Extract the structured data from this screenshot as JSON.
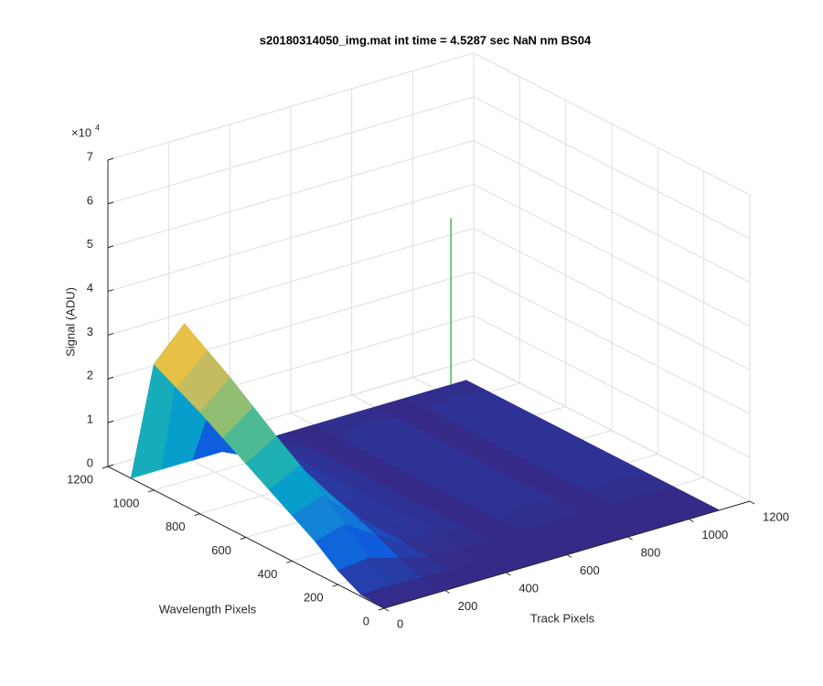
{
  "chart_data": {
    "type": "surface",
    "title": "s20180314050_img.mat int time = 4.5287 sec  NaN nm BS04",
    "xlabel": "Track Pixels",
    "ylabel": "Wavelength Pixels",
    "zlabel": "Signal (ADU)",
    "z_multiplier": {
      "base": "×10",
      "exponent": "4"
    },
    "x": [
      0,
      100,
      200,
      300,
      400,
      500,
      600,
      700,
      800,
      900,
      1000,
      1100
    ],
    "y": [
      0,
      100,
      200,
      300,
      400,
      500,
      600,
      700,
      800,
      900,
      1000,
      1100
    ],
    "z": [
      [
        0,
        0,
        0,
        0,
        0,
        0,
        0,
        0,
        0,
        0,
        0,
        0
      ],
      [
        400,
        500,
        250,
        25,
        0,
        0,
        0,
        0,
        0,
        0,
        0,
        0
      ],
      [
        3200,
        4000,
        2000,
        200,
        0,
        0,
        0,
        0,
        0,
        0,
        0,
        0
      ],
      [
        7200,
        9000,
        4500,
        450,
        1500,
        0,
        0,
        1500,
        0,
        0,
        1500,
        0
      ],
      [
        10400,
        13000,
        6500,
        650,
        1500,
        0,
        0,
        1500,
        0,
        0,
        1500,
        0
      ],
      [
        13600,
        17000,
        8500,
        850,
        1500,
        0,
        0,
        1500,
        0,
        0,
        1500,
        0
      ],
      [
        16800,
        21000,
        10500,
        1050,
        1500,
        0,
        0,
        1500,
        0,
        0,
        1500,
        0
      ],
      [
        20000,
        25000,
        12500,
        1250,
        1500,
        0,
        0,
        1500,
        0,
        0,
        1500,
        0
      ],
      [
        23200,
        29000,
        14500,
        1450,
        1500,
        0,
        0,
        1500,
        0,
        0,
        1500,
        0
      ],
      [
        26000,
        32500,
        16250,
        1625,
        1500,
        0,
        0,
        1500,
        0,
        0,
        1500,
        0
      ],
      [
        28800,
        36000,
        18000,
        1800,
        1500,
        0,
        0,
        1500,
        0,
        0,
        1500,
        0
      ],
      [
        0,
        0,
        0,
        0,
        0,
        0,
        0,
        0,
        0,
        0,
        0,
        0
      ]
    ],
    "spike": {
      "x": 1050,
      "y": 1100,
      "z": 38000
    },
    "xlim": [
      0,
      1200
    ],
    "ylim": [
      0,
      1200
    ],
    "zlim": [
      0,
      70000
    ],
    "xticks": [
      0,
      200,
      400,
      600,
      800,
      1000,
      1200
    ],
    "yticks": [
      0,
      200,
      400,
      600,
      800,
      1000,
      1200
    ],
    "zticks": [
      {
        "value": 0,
        "label": "0"
      },
      {
        "value": 10000,
        "label": "1"
      },
      {
        "value": 20000,
        "label": "2"
      },
      {
        "value": 30000,
        "label": "3"
      },
      {
        "value": 40000,
        "label": "4"
      },
      {
        "value": 50000,
        "label": "5"
      },
      {
        "value": 60000,
        "label": "6"
      },
      {
        "value": 70000,
        "label": "7"
      }
    ],
    "grid": true,
    "colormap": [
      "#352a87",
      "#0f5cdd",
      "#1481d6",
      "#06a4ca",
      "#2eb7a4",
      "#87bf77",
      "#d1bb59",
      "#fec832",
      "#f9fb0e"
    ]
  }
}
